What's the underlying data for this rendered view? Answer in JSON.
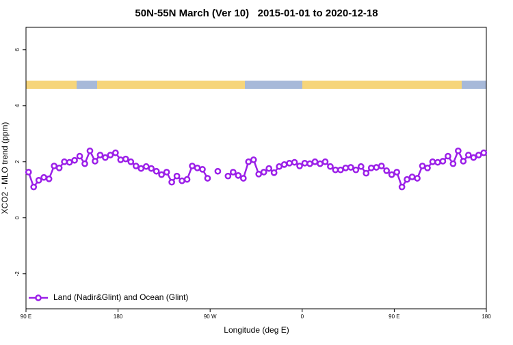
{
  "chart_data": {
    "type": "line",
    "title": "50N-55N March (Ver 10)   2015-01-01 to 2020-12-18",
    "x_label": "Longitude (deg E)",
    "y_label": "XCO2 - MLO trend (ppm)",
    "x": [
      92.5,
      97.5,
      102.5,
      107.5,
      112.5,
      117.5,
      122.5,
      127.5,
      132.5,
      137.5,
      142.5,
      147.5,
      152.5,
      157.5,
      162.5,
      167.5,
      172.5,
      177.5,
      182.5,
      187.5,
      192.5,
      197.5,
      202.5,
      207.5,
      212.5,
      217.5,
      222.5,
      227.5,
      232.5,
      237.5,
      242.5,
      247.5,
      252.5,
      257.5,
      262.5,
      267.5,
      272.5,
      277.5,
      282.5,
      287.5,
      292.5,
      297.5,
      302.5,
      307.5,
      312.5,
      317.5,
      322.5,
      327.5,
      332.5,
      337.5,
      342.5,
      347.5,
      352.5,
      357.5,
      362.5,
      367.5,
      372.5,
      377.5,
      382.5,
      387.5,
      392.5,
      397.5,
      402.5,
      407.5,
      412.5,
      417.5,
      422.5,
      427.5,
      432.5,
      437.5,
      442.5,
      447.5,
      452.5,
      457.5,
      462.5,
      467.5,
      472.5,
      477.5,
      482.5,
      487.5,
      492.5,
      497.5,
      502.5,
      507.5,
      512.5,
      517.5,
      522.5,
      527.5,
      532.5,
      537.5
    ],
    "series": [
      {
        "name": "Land (Nadir&Glint) and Ocean (Glint)",
        "color": "#9b1fe8",
        "values": [
          1.63,
          1.1,
          1.34,
          1.44,
          1.39,
          1.85,
          1.78,
          2.0,
          1.98,
          2.05,
          2.2,
          1.93,
          2.39,
          2.02,
          2.24,
          2.15,
          2.24,
          2.32,
          2.07,
          2.1,
          2.0,
          1.85,
          1.76,
          1.83,
          1.76,
          1.66,
          1.54,
          1.63,
          1.27,
          1.49,
          1.32,
          1.37,
          1.85,
          1.78,
          1.73,
          1.41,
          null,
          1.66,
          null,
          1.49,
          1.63,
          1.51,
          1.41,
          2.0,
          2.07,
          1.56,
          1.63,
          1.76,
          1.61,
          1.83,
          1.9,
          1.95,
          1.98,
          1.85,
          1.95,
          1.93,
          2.0,
          1.93,
          2.0,
          1.83,
          1.71,
          1.71,
          1.78,
          1.8,
          1.71,
          1.83,
          1.59,
          1.78,
          1.8,
          1.85,
          1.68,
          1.54,
          1.63,
          1.1,
          1.37,
          1.46,
          1.41,
          1.85,
          1.78,
          2.0,
          1.98,
          2.02,
          2.2,
          1.93,
          2.39,
          2.02,
          2.24,
          2.15,
          2.24,
          2.32
        ]
      }
    ],
    "xlim": [
      90,
      540
    ],
    "xticks": [
      {
        "value": 90,
        "label": "90 E"
      },
      {
        "value": 180,
        "label": "180"
      },
      {
        "value": 270,
        "label": "90 W"
      },
      {
        "value": 360,
        "label": "0"
      },
      {
        "value": 450,
        "label": "90 E"
      },
      {
        "value": 540,
        "label": "180"
      }
    ],
    "ylim": [
      -3.25,
      6.8
    ],
    "yticks": [
      -2,
      0,
      2,
      4,
      6
    ],
    "legend": "bottom left"
  }
}
